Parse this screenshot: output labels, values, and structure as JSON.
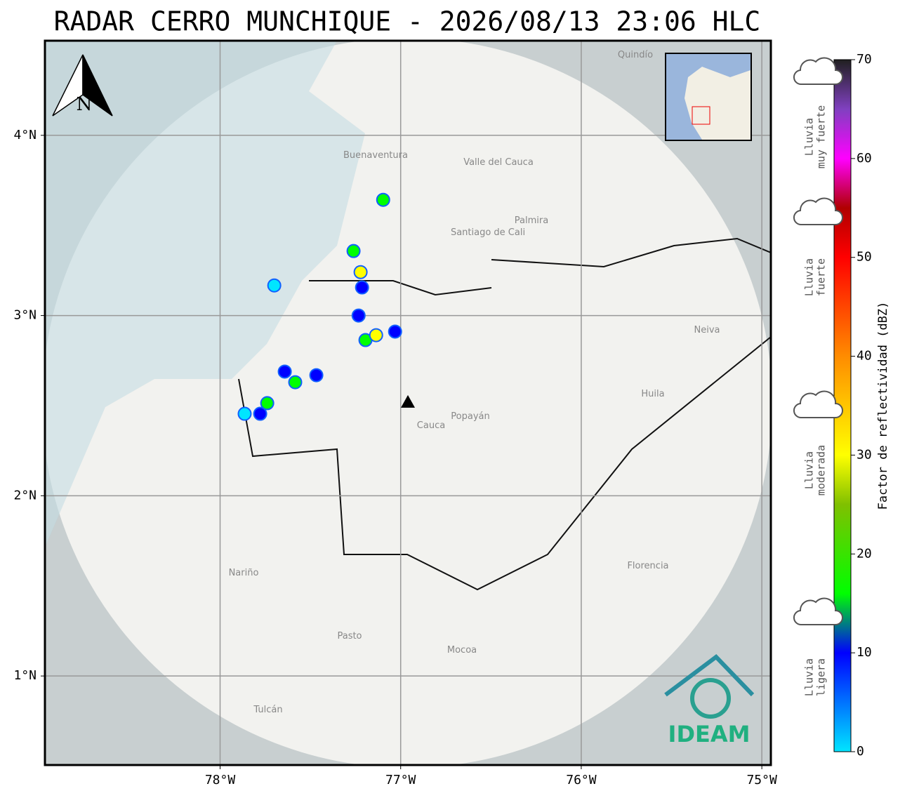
{
  "title": "RADAR CERRO MUNCHIQUE - 2026/08/13 23:06 HLC",
  "map": {
    "xlim": [
      -78.97,
      -74.95
    ],
    "ylim": [
      0.506,
      4.525
    ],
    "xticks": [
      {
        "value": -78,
        "label": "78°W"
      },
      {
        "value": -77,
        "label": "77°W"
      },
      {
        "value": -76,
        "label": "76°W"
      },
      {
        "value": -75,
        "label": "75°W"
      }
    ],
    "yticks": [
      {
        "value": 4,
        "label": "4°N"
      },
      {
        "value": 3,
        "label": "3°N"
      },
      {
        "value": 2,
        "label": "2°N"
      },
      {
        "value": 1,
        "label": "1°N"
      }
    ],
    "grid": true,
    "north_label": "N",
    "radar_site": {
      "lon": -76.96,
      "lat": 2.52
    },
    "echoes": [
      {
        "lon": -77.097,
        "lat": 3.642,
        "dbz": 18
      },
      {
        "lon": -77.261,
        "lat": 3.358,
        "dbz": 20
      },
      {
        "lon": -77.222,
        "lat": 3.241,
        "dbz": 35
      },
      {
        "lon": -77.214,
        "lat": 3.156,
        "dbz": 12
      },
      {
        "lon": -77.233,
        "lat": 3.0,
        "dbz": 10
      },
      {
        "lon": -77.195,
        "lat": 2.864,
        "dbz": 22
      },
      {
        "lon": -77.136,
        "lat": 2.891,
        "dbz": 35
      },
      {
        "lon": -77.031,
        "lat": 2.911,
        "dbz": 10
      },
      {
        "lon": -77.7,
        "lat": 3.167,
        "dbz": 8
      },
      {
        "lon": -77.642,
        "lat": 2.689,
        "dbz": 15
      },
      {
        "lon": -77.584,
        "lat": 2.63,
        "dbz": 22
      },
      {
        "lon": -77.467,
        "lat": 2.669,
        "dbz": 14
      },
      {
        "lon": -77.739,
        "lat": 2.514,
        "dbz": 18
      },
      {
        "lon": -77.778,
        "lat": 2.455,
        "dbz": 12
      },
      {
        "lon": -77.864,
        "lat": 2.455,
        "dbz": 8
      }
    ],
    "places": [
      "Buenaventura",
      "Valle del Cauca",
      "Santiago de Cali",
      "Palmira",
      "Cauca",
      "Popayán",
      "Huila",
      "Neiva",
      "Nariño",
      "Pasto",
      "Mocoa",
      "Florencia",
      "Tulcán",
      "Quindío"
    ],
    "logo": "IDEAM"
  },
  "colorbar": {
    "label": "Factor de reflectividad (dBZ)",
    "lim": [
      0,
      70
    ],
    "ticks": [
      0,
      10,
      20,
      30,
      40,
      50,
      60,
      70
    ],
    "colormap": [
      {
        "value": 0,
        "color": "#00e5ff"
      },
      {
        "value": 10,
        "color": "#0000ff"
      },
      {
        "value": 16,
        "color": "#00ff00"
      },
      {
        "value": 25,
        "color": "#80c000"
      },
      {
        "value": 30,
        "color": "#ffff00"
      },
      {
        "value": 40,
        "color": "#ff8c00"
      },
      {
        "value": 50,
        "color": "#ff0000"
      },
      {
        "value": 55,
        "color": "#b00000"
      },
      {
        "value": 60,
        "color": "#ff00ff"
      },
      {
        "value": 65,
        "color": "#8040c0"
      },
      {
        "value": 70,
        "color": "#202020"
      }
    ],
    "categories": [
      [
        "Lluvia",
        "muy fuerte"
      ],
      [
        "Lluvia",
        "fuerte"
      ],
      [
        "Lluvia",
        "moderada"
      ],
      [
        "Lluvia",
        "ligera"
      ]
    ]
  }
}
